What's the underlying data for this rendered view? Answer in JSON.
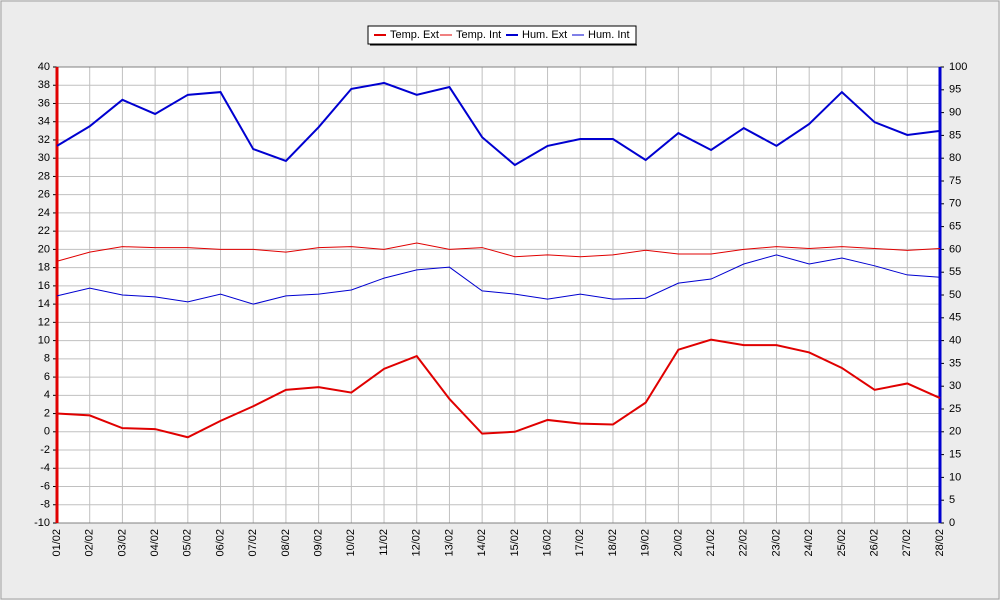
{
  "chart_data": {
    "type": "line",
    "categories": [
      "01/02",
      "02/02",
      "03/02",
      "04/02",
      "05/02",
      "06/02",
      "07/02",
      "08/02",
      "09/02",
      "10/02",
      "11/02",
      "12/02",
      "13/02",
      "14/02",
      "15/02",
      "16/02",
      "17/02",
      "18/02",
      "19/02",
      "20/02",
      "21/02",
      "22/02",
      "23/02",
      "24/02",
      "25/02",
      "26/02",
      "27/02",
      "28/02"
    ],
    "series": [
      {
        "name": "Temp. Ext",
        "color": "#e00000",
        "width": 2,
        "values": [
          2.0,
          1.8,
          0.4,
          0.3,
          -0.6,
          1.2,
          2.8,
          4.6,
          4.9,
          4.3,
          6.9,
          8.3,
          3.6,
          -0.2,
          0,
          1.3,
          0.9,
          0.8,
          3.2,
          9.0,
          10.1,
          9.5,
          9.5,
          8.7,
          7.0,
          4.6,
          5.3,
          3.7
        ]
      },
      {
        "name": "Temp. Int",
        "color": "#e00000",
        "width": 1,
        "values": [
          18.7,
          19.7,
          20.3,
          20.2,
          20.2,
          20.0,
          20.0,
          19.7,
          20.2,
          20.3,
          20.0,
          20.7,
          20.0,
          20.2,
          19.2,
          19.4,
          19.2,
          19.4,
          19.9,
          19.5,
          19.5,
          20.0,
          20.3,
          20.1,
          20.3,
          20.1,
          19.9,
          20.1
        ]
      },
      {
        "name": "Hum. Ext",
        "color": "#0000d0",
        "width": 2,
        "axis": "y2",
        "values": [
          82.7,
          87,
          92.8,
          89.7,
          93.9,
          94.5,
          82,
          79.4,
          86.8,
          95.2,
          96.5,
          93.9,
          95.6,
          84.6,
          78.5,
          82.7,
          84.2,
          84.2,
          79.6,
          85.5,
          81.8,
          86.6,
          82.7,
          87.5,
          94.5,
          87.9,
          85.1,
          86
        ]
      },
      {
        "name": "Hum. Int",
        "color": "#0000d0",
        "width": 1,
        "axis": "y2",
        "values": [
          49.8,
          51.5,
          50,
          49.6,
          48.5,
          50.2,
          48,
          49.8,
          50.2,
          51.1,
          53.7,
          55.5,
          56.1,
          50.9,
          50.2,
          49.1,
          50.2,
          49.1,
          49.3,
          52.6,
          53.5,
          56.8,
          58.8,
          56.8,
          58.1,
          56.4,
          54.4,
          53.9
        ]
      }
    ],
    "ylim": [
      -10,
      40
    ],
    "yticks": [
      -10,
      -8,
      -6,
      -4,
      -2,
      0,
      2,
      4,
      6,
      8,
      10,
      12,
      14,
      16,
      18,
      20,
      22,
      24,
      26,
      28,
      30,
      32,
      34,
      36,
      38,
      40
    ],
    "y2lim": [
      0,
      100
    ],
    "y2ticks": [
      0,
      5,
      10,
      15,
      20,
      25,
      30,
      35,
      40,
      45,
      50,
      55,
      60,
      65,
      70,
      75,
      80,
      85,
      90,
      95,
      100
    ],
    "grid": true,
    "legend": "top"
  }
}
